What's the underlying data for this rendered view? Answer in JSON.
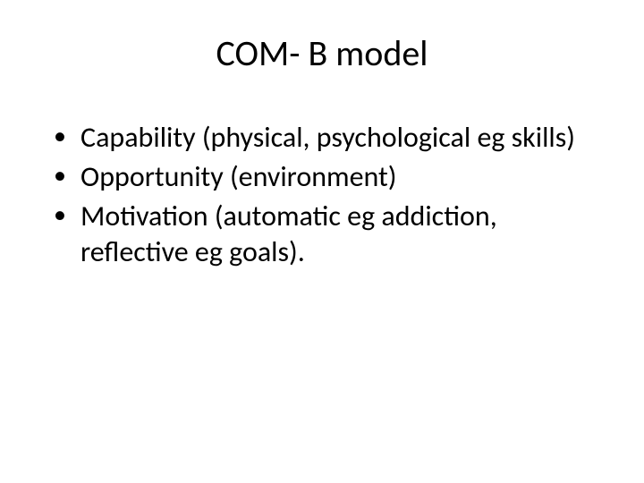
{
  "slide": {
    "title": "COM- B model",
    "bullets": [
      "Capability (physical, psychological eg skills)",
      "Opportunity (environment)",
      "Motivation (automatic eg addiction, reflective eg goals)."
    ]
  },
  "styling": {
    "background_color": "#ffffff",
    "text_color": "#000000",
    "title_fontsize": 40,
    "body_fontsize": 32,
    "font_family": "Calibri",
    "slide_width": 720,
    "slide_height": 540
  }
}
